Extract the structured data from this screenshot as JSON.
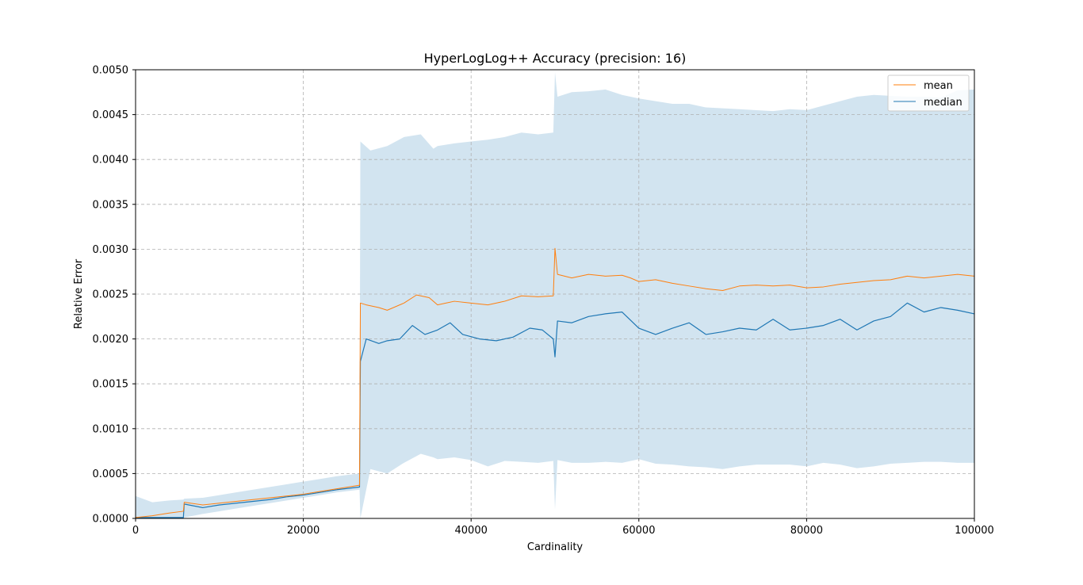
{
  "chart_data": {
    "type": "line",
    "title": "HyperLogLog++ Accuracy (precision: 16)",
    "xlabel": "Cardinality",
    "ylabel": "Relative Error",
    "xlim": [
      0,
      100000
    ],
    "ylim": [
      0,
      0.005
    ],
    "x_ticks": [
      0,
      20000,
      40000,
      60000,
      80000,
      100000
    ],
    "x_tick_labels": [
      "0",
      "20000",
      "40000",
      "60000",
      "80000",
      "100000"
    ],
    "y_ticks": [
      0,
      0.0005,
      0.001,
      0.0015,
      0.002,
      0.0025,
      0.003,
      0.0035,
      0.004,
      0.0045,
      0.005
    ],
    "y_tick_labels": [
      "0.0000",
      "0.0005",
      "0.0010",
      "0.0015",
      "0.0020",
      "0.0025",
      "0.0030",
      "0.0035",
      "0.0040",
      "0.0045",
      "0.0050"
    ],
    "grid": true,
    "legend_position": "top-right",
    "colors": {
      "mean": "#ff7f0e",
      "median": "#1f77b4",
      "band": "#1f77b4"
    },
    "series": [
      {
        "name": "mean",
        "x": [
          0,
          2000,
          4000,
          5700,
          5800,
          8000,
          10000,
          12000,
          14000,
          16000,
          18000,
          20000,
          22000,
          24000,
          26700,
          26800,
          27500,
          29000,
          30000,
          32000,
          33500,
          35000,
          36000,
          38000,
          40000,
          42000,
          44000,
          46000,
          48000,
          49800,
          50000,
          50300,
          52000,
          54000,
          56000,
          58000,
          59000,
          60000,
          62000,
          64000,
          66000,
          68000,
          70000,
          72000,
          74000,
          76000,
          78000,
          80000,
          82000,
          84000,
          86000,
          88000,
          90000,
          92000,
          94000,
          96000,
          98000,
          100000
        ],
        "values": [
          1e-05,
          3e-05,
          6e-05,
          8e-05,
          0.00018,
          0.00015,
          0.00017,
          0.00019,
          0.00021,
          0.00023,
          0.00025,
          0.00027,
          0.0003,
          0.00033,
          0.00037,
          0.0024,
          0.00238,
          0.00235,
          0.00232,
          0.0024,
          0.00249,
          0.00246,
          0.00238,
          0.00242,
          0.0024,
          0.00238,
          0.00242,
          0.00248,
          0.00247,
          0.00248,
          0.00301,
          0.00272,
          0.00268,
          0.00272,
          0.0027,
          0.00271,
          0.00268,
          0.00264,
          0.00266,
          0.00262,
          0.00259,
          0.00256,
          0.00254,
          0.00259,
          0.0026,
          0.00259,
          0.0026,
          0.00257,
          0.00258,
          0.00261,
          0.00263,
          0.00265,
          0.00266,
          0.0027,
          0.00268,
          0.0027,
          0.00272,
          0.0027
        ]
      },
      {
        "name": "median",
        "x": [
          0,
          2000,
          4000,
          5700,
          5800,
          8000,
          10000,
          12000,
          14000,
          16000,
          18000,
          20000,
          22000,
          24000,
          26700,
          26800,
          27500,
          29000,
          30000,
          31500,
          33000,
          34500,
          36000,
          37500,
          39000,
          41000,
          43000,
          45000,
          47000,
          48500,
          49800,
          50000,
          50300,
          52000,
          54000,
          56000,
          58000,
          60000,
          62000,
          64000,
          66000,
          68000,
          70000,
          72000,
          74000,
          76000,
          78000,
          80000,
          82000,
          84000,
          86000,
          88000,
          90000,
          92000,
          94000,
          96000,
          98000,
          100000
        ],
        "values": [
          1e-05,
          1e-05,
          1e-05,
          1e-05,
          0.00016,
          0.00012,
          0.00015,
          0.00017,
          0.00019,
          0.00021,
          0.00024,
          0.00026,
          0.00029,
          0.00032,
          0.00035,
          0.00175,
          0.002,
          0.00195,
          0.00198,
          0.002,
          0.00215,
          0.00205,
          0.0021,
          0.00218,
          0.00205,
          0.002,
          0.00198,
          0.00202,
          0.00212,
          0.0021,
          0.002,
          0.0018,
          0.0022,
          0.00218,
          0.00225,
          0.00228,
          0.0023,
          0.00212,
          0.00205,
          0.00212,
          0.00218,
          0.00205,
          0.00208,
          0.00212,
          0.0021,
          0.00222,
          0.0021,
          0.00212,
          0.00215,
          0.00222,
          0.0021,
          0.0022,
          0.00225,
          0.0024,
          0.0023,
          0.00235,
          0.00232,
          0.00228
        ]
      }
    ],
    "band": {
      "x": [
        0,
        2000,
        4000,
        5700,
        5800,
        8000,
        10000,
        12000,
        14000,
        16000,
        18000,
        20000,
        22000,
        24000,
        26700,
        26800,
        28000,
        30000,
        32000,
        34000,
        35500,
        36000,
        38000,
        40000,
        42000,
        44000,
        46000,
        48000,
        49800,
        50000,
        50300,
        52000,
        54000,
        56000,
        58000,
        60000,
        62000,
        64000,
        66000,
        68000,
        70000,
        72000,
        74000,
        76000,
        78000,
        80000,
        82000,
        84000,
        86000,
        88000,
        90000,
        92000,
        94000,
        96000,
        98000,
        100000
      ],
      "lower": [
        0.0,
        0.0,
        0.0,
        0.0,
        1e-05,
        5e-05,
        8e-05,
        0.00011,
        0.00014,
        0.00017,
        0.0002,
        0.00023,
        0.00026,
        0.00029,
        0.00032,
        0.0,
        0.00055,
        0.0005,
        0.00062,
        0.00072,
        0.00068,
        0.00066,
        0.00068,
        0.00065,
        0.00058,
        0.00064,
        0.00063,
        0.00062,
        0.00064,
        0.0001,
        0.00065,
        0.00062,
        0.00062,
        0.00063,
        0.00062,
        0.00066,
        0.00061,
        0.0006,
        0.00058,
        0.00057,
        0.00055,
        0.00058,
        0.0006,
        0.0006,
        0.0006,
        0.00058,
        0.00062,
        0.0006,
        0.00056,
        0.00058,
        0.00061,
        0.00062,
        0.00063,
        0.00063,
        0.00062,
        0.00062
      ],
      "upper": [
        0.00025,
        0.00018,
        0.0002,
        0.00021,
        0.00022,
        0.00023,
        0.00026,
        0.00029,
        0.00032,
        0.00035,
        0.00038,
        0.00041,
        0.00044,
        0.00047,
        0.0005,
        0.0042,
        0.0041,
        0.00415,
        0.00425,
        0.00428,
        0.00412,
        0.00415,
        0.00418,
        0.0042,
        0.00422,
        0.00425,
        0.0043,
        0.00428,
        0.0043,
        0.00497,
        0.0047,
        0.00475,
        0.00476,
        0.00478,
        0.00472,
        0.00468,
        0.00465,
        0.00462,
        0.00462,
        0.00458,
        0.00457,
        0.00456,
        0.00455,
        0.00454,
        0.00456,
        0.00455,
        0.0046,
        0.00465,
        0.0047,
        0.00472,
        0.00471,
        0.0047,
        0.0047,
        0.00469,
        0.00477,
        0.00478
      ]
    }
  }
}
